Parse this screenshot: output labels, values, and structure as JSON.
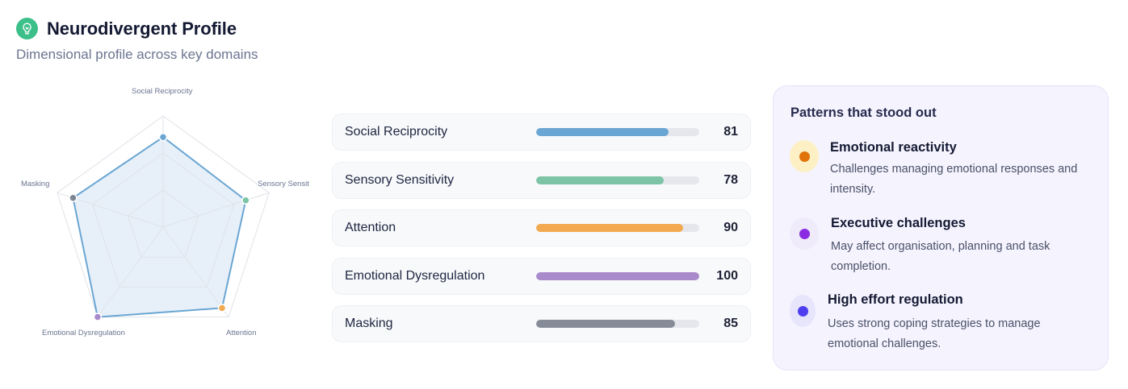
{
  "header": {
    "icon": "lightbulb-icon",
    "title": "Neurodivergent Profile",
    "subtitle": "Dimensional profile across key domains",
    "icon_color": "#3dbf8a"
  },
  "chart_data": {
    "type": "radar",
    "title": "",
    "axes": [
      "Social Reciprocity",
      "Sensory Sensitivity",
      "Attention",
      "Emotional Dysregulation",
      "Masking"
    ],
    "axis_labels_displayed": [
      "Social Reciprocity",
      "Sensory Sensit",
      "Attention",
      "Emotional Dysregulation",
      "Masking"
    ],
    "values": [
      81,
      78,
      90,
      100,
      85
    ],
    "range": [
      0,
      100
    ],
    "grid_levels": 3,
    "series_color": "#6aa6d3",
    "fill_color": "#e7f0f9",
    "point_colors": [
      "#6aa6d3",
      "#7cc4a5",
      "#f3a94f",
      "#a98acb",
      "#7e8594"
    ]
  },
  "domains": [
    {
      "label": "Social Reciprocity",
      "value": 81,
      "display": "81",
      "color": "#6aa6d3"
    },
    {
      "label": "Sensory Sensitivity",
      "value": 78,
      "display": "78",
      "color": "#7cc4a5"
    },
    {
      "label": "Attention",
      "value": 90,
      "display": "90",
      "color": "#f3a94f"
    },
    {
      "label": "Emotional Dysregulation",
      "value": 100,
      "display": "100",
      "color": "#a98acb"
    },
    {
      "label": "Masking",
      "value": 85,
      "display": "85",
      "color": "#868b98"
    }
  ],
  "patterns": {
    "title": "Patterns that stood out",
    "items": [
      {
        "title": "Emotional reactivity",
        "desc": "Challenges managing emotional responses and intensity.",
        "icon": "dot-icon",
        "dot_color": "#e07408",
        "bg_color": "#fdf0c4"
      },
      {
        "title": "Executive challenges",
        "desc": "May affect organisation, planning and task completion.",
        "icon": "dot-icon",
        "dot_color": "#8a2be2",
        "bg_color": "#efebfb"
      },
      {
        "title": "High effort regulation",
        "desc": "Uses strong coping strategies to manage emotional challenges.",
        "icon": "dot-icon",
        "dot_color": "#4f3ef0",
        "bg_color": "#e7e5fb"
      }
    ]
  }
}
